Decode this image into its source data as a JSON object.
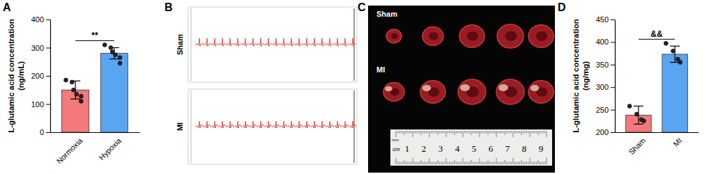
{
  "chart_data": [
    {
      "panel": "A",
      "type": "bar",
      "y_label": [
        "L-glutamic acid concentration",
        "(ng/mL)"
      ],
      "categories": [
        "Normoxia",
        "Hypoxia"
      ],
      "values": [
        150,
        280
      ],
      "errors": [
        32,
        20
      ],
      "points": [
        [
          185,
          178,
          150,
          135,
          128,
          110
        ],
        [
          310,
          300,
          285,
          275,
          265,
          245
        ]
      ],
      "colors": [
        "#f4797b",
        "#5aa5f2"
      ],
      "ylim": [
        0,
        400
      ],
      "yticks": [
        0,
        100,
        200,
        300,
        400
      ],
      "annotation": "**"
    },
    {
      "panel": "B",
      "type": "ecg",
      "labels": [
        "Sham",
        "MI"
      ],
      "color": "#e0403f"
    },
    {
      "panel": "C",
      "type": "image",
      "labels": [
        "Sham",
        "MI"
      ],
      "ruler_units": [
        "mm",
        "cm"
      ],
      "ruler_labels": [
        "1",
        "2",
        "3",
        "4",
        "5",
        "6",
        "7",
        "8",
        "9"
      ]
    },
    {
      "panel": "D",
      "type": "bar",
      "y_label": [
        "L-glutamic acid concentration",
        "(ng/mg)"
      ],
      "categories": [
        "Sham",
        "MI"
      ],
      "values": [
        238,
        373
      ],
      "errors": [
        20,
        18
      ],
      "points": [
        [
          258,
          240,
          228,
          225
        ],
        [
          397,
          380,
          362,
          355
        ]
      ],
      "colors": [
        "#f4797b",
        "#5aa5f2"
      ],
      "ylim": [
        200,
        450
      ],
      "yticks": [
        200,
        250,
        300,
        350,
        400,
        450
      ],
      "annotation": "&&"
    }
  ]
}
